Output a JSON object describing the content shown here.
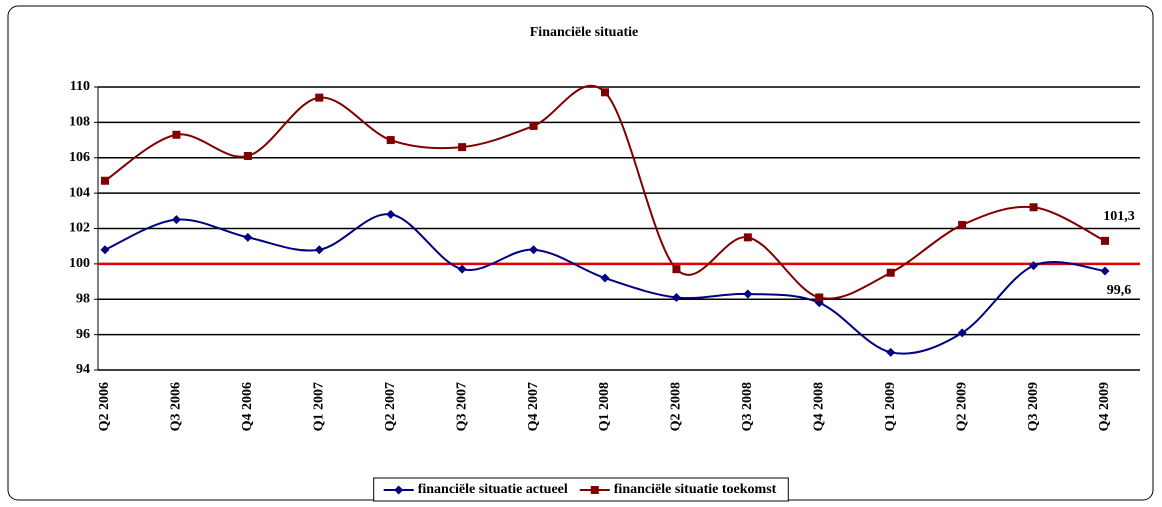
{
  "chart_data": {
    "type": "line",
    "title": "Financiële situatie",
    "categories": [
      "Q2 2006",
      "Q3 2006",
      "Q4 2006",
      "Q1 2007",
      "Q2 2007",
      "Q3 2007",
      "Q4 2007",
      "Q1 2008",
      "Q2 2008",
      "Q3 2008",
      "Q4 2008",
      "Q1 2009",
      "Q2 2009",
      "Q3 2009",
      "Q4 2009"
    ],
    "series": [
      {
        "name": "financiële situatie actueel",
        "color": "#000080",
        "marker": "diamond",
        "values": [
          100.8,
          102.5,
          101.5,
          100.8,
          102.8,
          99.7,
          100.8,
          99.2,
          98.1,
          98.3,
          97.8,
          95.0,
          96.1,
          99.9,
          99.6
        ],
        "value_labels": [
          null,
          null,
          null,
          null,
          null,
          null,
          null,
          null,
          null,
          null,
          null,
          null,
          null,
          null,
          "99,6"
        ]
      },
      {
        "name": "financiële situatie toekomst",
        "color": "#800000",
        "marker": "square",
        "values": [
          104.7,
          107.3,
          106.1,
          109.4,
          107.0,
          106.6,
          107.8,
          109.7,
          99.7,
          101.5,
          98.1,
          99.5,
          102.2,
          103.2,
          101.3
        ],
        "value_labels": [
          null,
          null,
          null,
          null,
          null,
          null,
          null,
          null,
          null,
          null,
          null,
          null,
          null,
          null,
          "101,3"
        ]
      }
    ],
    "reference_line": {
      "value": 100,
      "color": "#e00000"
    },
    "ylim": [
      94,
      110
    ],
    "yticks": [
      94,
      96,
      98,
      100,
      102,
      104,
      106,
      108,
      110
    ],
    "grid": true,
    "legend": "bottom",
    "smooth": true
  }
}
